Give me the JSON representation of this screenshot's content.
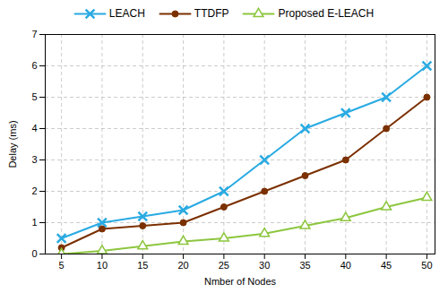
{
  "chart_data": {
    "type": "line",
    "x": [
      5,
      10,
      15,
      20,
      25,
      30,
      35,
      40,
      45,
      50
    ],
    "series": [
      {
        "name": "LEACH",
        "color": "#29aae2",
        "marker": "x",
        "values": [
          0.5,
          1.0,
          1.2,
          1.4,
          2.0,
          3.0,
          4.0,
          4.5,
          5.0,
          6.0
        ]
      },
      {
        "name": "TTDFP",
        "color": "#7b3000",
        "marker": "circle",
        "values": [
          0.2,
          0.8,
          0.9,
          1.0,
          1.5,
          2.0,
          2.5,
          3.0,
          4.0,
          5.0
        ]
      },
      {
        "name": "Proposed E-LEACH",
        "color": "#8dc63f",
        "marker": "triangle",
        "values": [
          0.0,
          0.1,
          0.25,
          0.4,
          0.5,
          0.65,
          0.9,
          1.15,
          1.5,
          1.8
        ]
      }
    ],
    "xlabel": "Nmber of Nodes",
    "ylabel": "Delay (ms)",
    "xlim": [
      3,
      51
    ],
    "ylim": [
      0,
      7
    ],
    "xticks": [
      5,
      10,
      15,
      20,
      25,
      30,
      35,
      40,
      45,
      50
    ],
    "yticks": [
      0,
      1,
      2,
      3,
      4,
      5,
      6,
      7
    ],
    "grid": true,
    "legend": "top"
  }
}
